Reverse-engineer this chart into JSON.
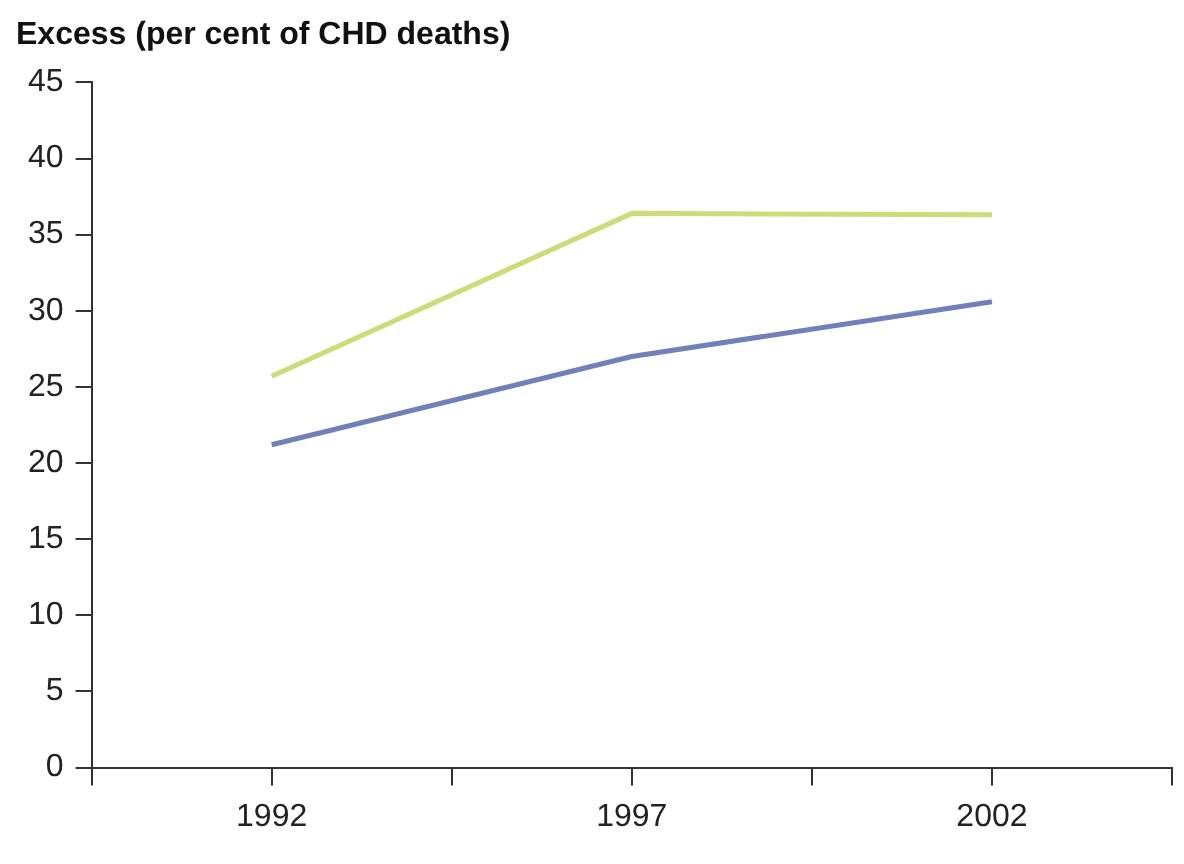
{
  "chart_data": {
    "type": "line",
    "title": "Excess (per cent of CHD deaths)",
    "x": [
      1992,
      1997,
      2002
    ],
    "series": [
      {
        "color": "#cddc78",
        "values": [
          25.7,
          36.4,
          36.3
        ]
      },
      {
        "color": "#7180b9",
        "values": [
          21.2,
          27.0,
          30.6
        ]
      }
    ],
    "xlim": [
      1989.5,
      2004.5
    ],
    "xticks": [
      {
        "value": 1989.5,
        "label": null
      },
      1992,
      {
        "value": 1994.5,
        "label": null
      },
      1997,
      {
        "value": 1999.5,
        "label": null
      },
      2002,
      {
        "value": 2004.5,
        "label": null
      }
    ],
    "ylim": [
      0,
      45
    ],
    "yticks": [
      0,
      5,
      10,
      15,
      20,
      25,
      30,
      35,
      40,
      45
    ],
    "grid": false,
    "legend": false,
    "marker": "none",
    "line_style": "solid"
  }
}
